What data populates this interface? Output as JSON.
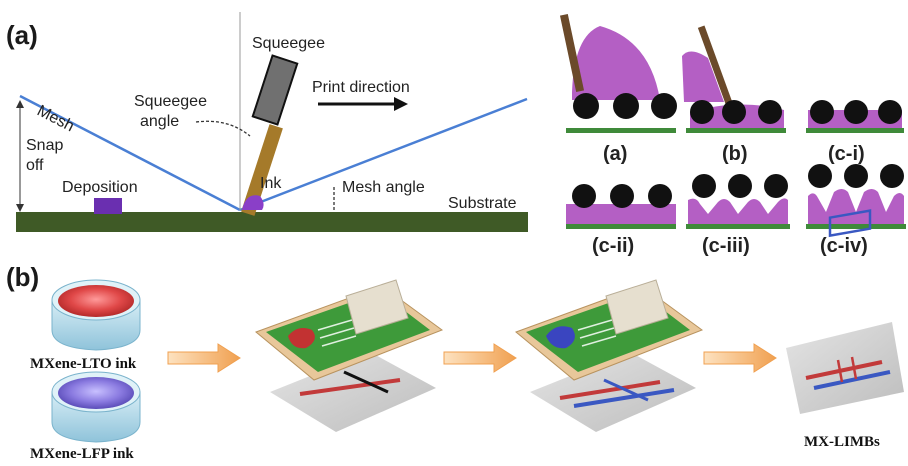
{
  "panel_a": {
    "label": "(a)",
    "mesh_label": "Mesh",
    "squeegee_label": "Squeegee",
    "squeegee_angle_line1": "Squeegee",
    "squeegee_angle_line2": "angle",
    "print_direction_label": "Print direction",
    "snap_line1": "Snap",
    "snap_line2": "off",
    "deposition_label": "Deposition",
    "ink_label": "Ink",
    "mesh_angle_label": "Mesh angle",
    "substrate_label": "Substrate",
    "stages": [
      "(a)",
      "(b)",
      "(c-i)",
      "(c-ii)",
      "(c-iii)",
      "(c-iv)"
    ]
  },
  "panel_b": {
    "label": "(b)",
    "ink1_label": "MXene-LTO ink",
    "ink2_label": "MXene-LFP ink",
    "product_label": "MX-LIMBs"
  },
  "colors": {
    "mesh_line": "#4a7fd4",
    "substrate": "#3f5a26",
    "ink_purple": "#b45fc4",
    "squeegee_handle": "#8a6a2a",
    "frame_wood": "#e8c79a",
    "screen_green": "#3e9a3a",
    "red_ink": "#e04848",
    "blue_ink": "#4a58c8",
    "arrow_orange": "#f0a050"
  }
}
